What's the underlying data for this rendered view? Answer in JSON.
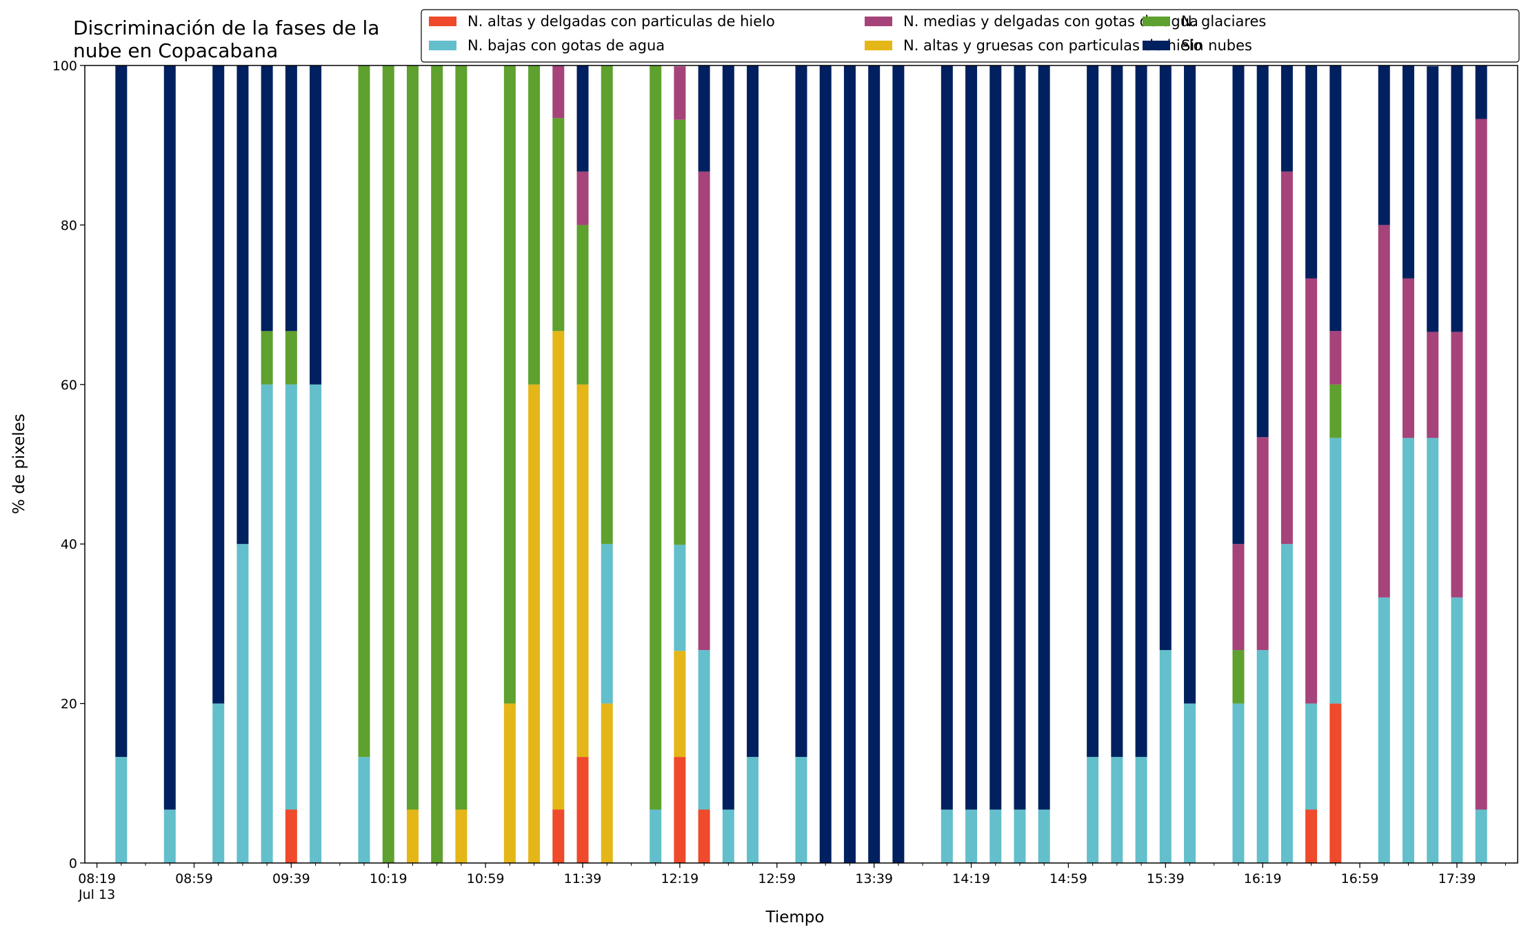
{
  "chart_data": {
    "type": "bar",
    "stacked": true,
    "title_lines": [
      "Discriminación de la fases de la",
      "nube en Copacabana"
    ],
    "xlabel": "Tiempo",
    "ylabel": "% de pixeles",
    "ylim": [
      0,
      100
    ],
    "yticks": [
      0,
      20,
      40,
      60,
      80,
      100
    ],
    "x_start_time": "08:19",
    "x_range_minutes": [
      -5,
      585
    ],
    "x_major_ticks": [
      "08:19",
      "08:59",
      "09:39",
      "10:19",
      "10:59",
      "11:39",
      "12:19",
      "12:59",
      "13:39",
      "14:19",
      "14:59",
      "15:39",
      "16:19",
      "16:59",
      "17:39"
    ],
    "x_minor_step_minutes": 10,
    "x_date_label": "Jul 13",
    "grid": false,
    "legend_position": "top-right",
    "series": [
      {
        "name": "N. altas y delgadas con particulas de hielo",
        "color": "#ee4a2b"
      },
      {
        "name": "N. altas y gruesas con particulas de hielo",
        "color": "#e5b617"
      },
      {
        "name": "N. bajas con gotas de agua",
        "color": "#63bfcb"
      },
      {
        "name": "N. glaciares",
        "color": "#5ea12e"
      },
      {
        "name": "N. medias y delgadas con gotas de agua",
        "color": "#a5437a"
      },
      {
        "name": "Sin nubes",
        "color": "#00205f"
      }
    ],
    "legend_order": [
      0,
      2,
      4,
      1,
      3,
      5
    ],
    "bars": [
      {
        "time": "08:29",
        "values": [
          0,
          0,
          13.3,
          0,
          0,
          86.7
        ]
      },
      {
        "time": "08:49",
        "values": [
          0,
          0,
          6.7,
          0,
          0,
          93.3
        ]
      },
      {
        "time": "09:09",
        "values": [
          0,
          0,
          20,
          0,
          0,
          80
        ]
      },
      {
        "time": "09:19",
        "values": [
          0,
          0,
          40,
          0,
          0,
          60
        ]
      },
      {
        "time": "09:29",
        "values": [
          0,
          0,
          60,
          6.7,
          0,
          33.3
        ]
      },
      {
        "time": "09:39",
        "values": [
          6.7,
          0,
          53.3,
          6.7,
          0,
          33.3
        ]
      },
      {
        "time": "09:49",
        "values": [
          0,
          0,
          60,
          0,
          0,
          40
        ]
      },
      {
        "time": "10:09",
        "values": [
          0,
          0,
          13.3,
          86.7,
          0,
          0
        ]
      },
      {
        "time": "10:19",
        "values": [
          0,
          0,
          0,
          100,
          0,
          0
        ]
      },
      {
        "time": "10:29",
        "values": [
          0,
          6.7,
          0,
          93.3,
          0,
          0
        ]
      },
      {
        "time": "10:39",
        "values": [
          0,
          0,
          0,
          100,
          0,
          0
        ]
      },
      {
        "time": "10:49",
        "values": [
          0,
          6.7,
          0,
          93.3,
          0,
          0
        ]
      },
      {
        "time": "11:09",
        "values": [
          0,
          20,
          0,
          80,
          0,
          0
        ]
      },
      {
        "time": "11:19",
        "values": [
          0,
          60,
          0,
          40,
          0,
          0
        ]
      },
      {
        "time": "11:29",
        "values": [
          6.7,
          60,
          0,
          26.7,
          6.7,
          0
        ]
      },
      {
        "time": "11:39",
        "values": [
          13.3,
          46.7,
          0,
          20,
          6.7,
          13.3
        ]
      },
      {
        "time": "11:49",
        "values": [
          0,
          20,
          20,
          60,
          0,
          0
        ]
      },
      {
        "time": "12:09",
        "values": [
          0,
          0,
          6.7,
          93.3,
          0,
          0
        ]
      },
      {
        "time": "12:19",
        "values": [
          13.3,
          13.3,
          13.3,
          53.3,
          6.7,
          0
        ]
      },
      {
        "time": "12:29",
        "values": [
          6.7,
          0,
          20,
          0,
          60,
          13.3
        ]
      },
      {
        "time": "12:39",
        "values": [
          0,
          0,
          6.7,
          0,
          0,
          93.3
        ]
      },
      {
        "time": "12:49",
        "values": [
          0,
          0,
          13.3,
          0,
          0,
          86.7
        ]
      },
      {
        "time": "13:09",
        "values": [
          0,
          0,
          13.3,
          0,
          0,
          86.7
        ]
      },
      {
        "time": "13:19",
        "values": [
          0,
          0,
          0,
          0,
          0,
          100
        ]
      },
      {
        "time": "13:29",
        "values": [
          0,
          0,
          0,
          0,
          0,
          100
        ]
      },
      {
        "time": "13:39",
        "values": [
          0,
          0,
          0,
          0,
          0,
          100
        ]
      },
      {
        "time": "13:49",
        "values": [
          0,
          0,
          0,
          0,
          0,
          100
        ]
      },
      {
        "time": "14:09",
        "values": [
          0,
          0,
          6.7,
          0,
          0,
          93.3
        ]
      },
      {
        "time": "14:19",
        "values": [
          0,
          0,
          6.7,
          0,
          0,
          93.3
        ]
      },
      {
        "time": "14:29",
        "values": [
          0,
          0,
          6.7,
          0,
          0,
          93.3
        ]
      },
      {
        "time": "14:39",
        "values": [
          0,
          0,
          6.7,
          0,
          0,
          93.3
        ]
      },
      {
        "time": "14:49",
        "values": [
          0,
          0,
          6.7,
          0,
          0,
          93.3
        ]
      },
      {
        "time": "15:09",
        "values": [
          0,
          0,
          13.3,
          0,
          0,
          86.7
        ]
      },
      {
        "time": "15:19",
        "values": [
          0,
          0,
          13.3,
          0,
          0,
          86.7
        ]
      },
      {
        "time": "15:29",
        "values": [
          0,
          0,
          13.3,
          0,
          0,
          86.7
        ]
      },
      {
        "time": "15:39",
        "values": [
          0,
          0,
          26.7,
          0,
          0,
          73.3
        ]
      },
      {
        "time": "15:49",
        "values": [
          0,
          0,
          20,
          0,
          0,
          80
        ]
      },
      {
        "time": "16:09",
        "values": [
          0,
          0,
          20,
          6.7,
          13.3,
          60
        ]
      },
      {
        "time": "16:19",
        "values": [
          0,
          0,
          26.7,
          0,
          26.7,
          46.7
        ]
      },
      {
        "time": "16:29",
        "values": [
          0,
          0,
          40,
          0,
          46.7,
          13.3
        ]
      },
      {
        "time": "16:39",
        "values": [
          6.7,
          0,
          13.3,
          0,
          53.3,
          26.7
        ]
      },
      {
        "time": "16:49",
        "values": [
          20,
          0,
          33.3,
          6.7,
          6.7,
          33.3
        ]
      },
      {
        "time": "17:09",
        "values": [
          0,
          0,
          33.3,
          0,
          46.7,
          20
        ]
      },
      {
        "time": "17:19",
        "values": [
          0,
          0,
          53.3,
          0,
          20,
          26.7
        ]
      },
      {
        "time": "17:29",
        "values": [
          0,
          0,
          53.3,
          0,
          13.3,
          33.3
        ]
      },
      {
        "time": "17:39",
        "values": [
          0,
          0,
          33.3,
          0,
          33.3,
          33.4
        ]
      },
      {
        "time": "17:49",
        "values": [
          0,
          0,
          6.7,
          0,
          86.6,
          6.7
        ]
      }
    ]
  }
}
